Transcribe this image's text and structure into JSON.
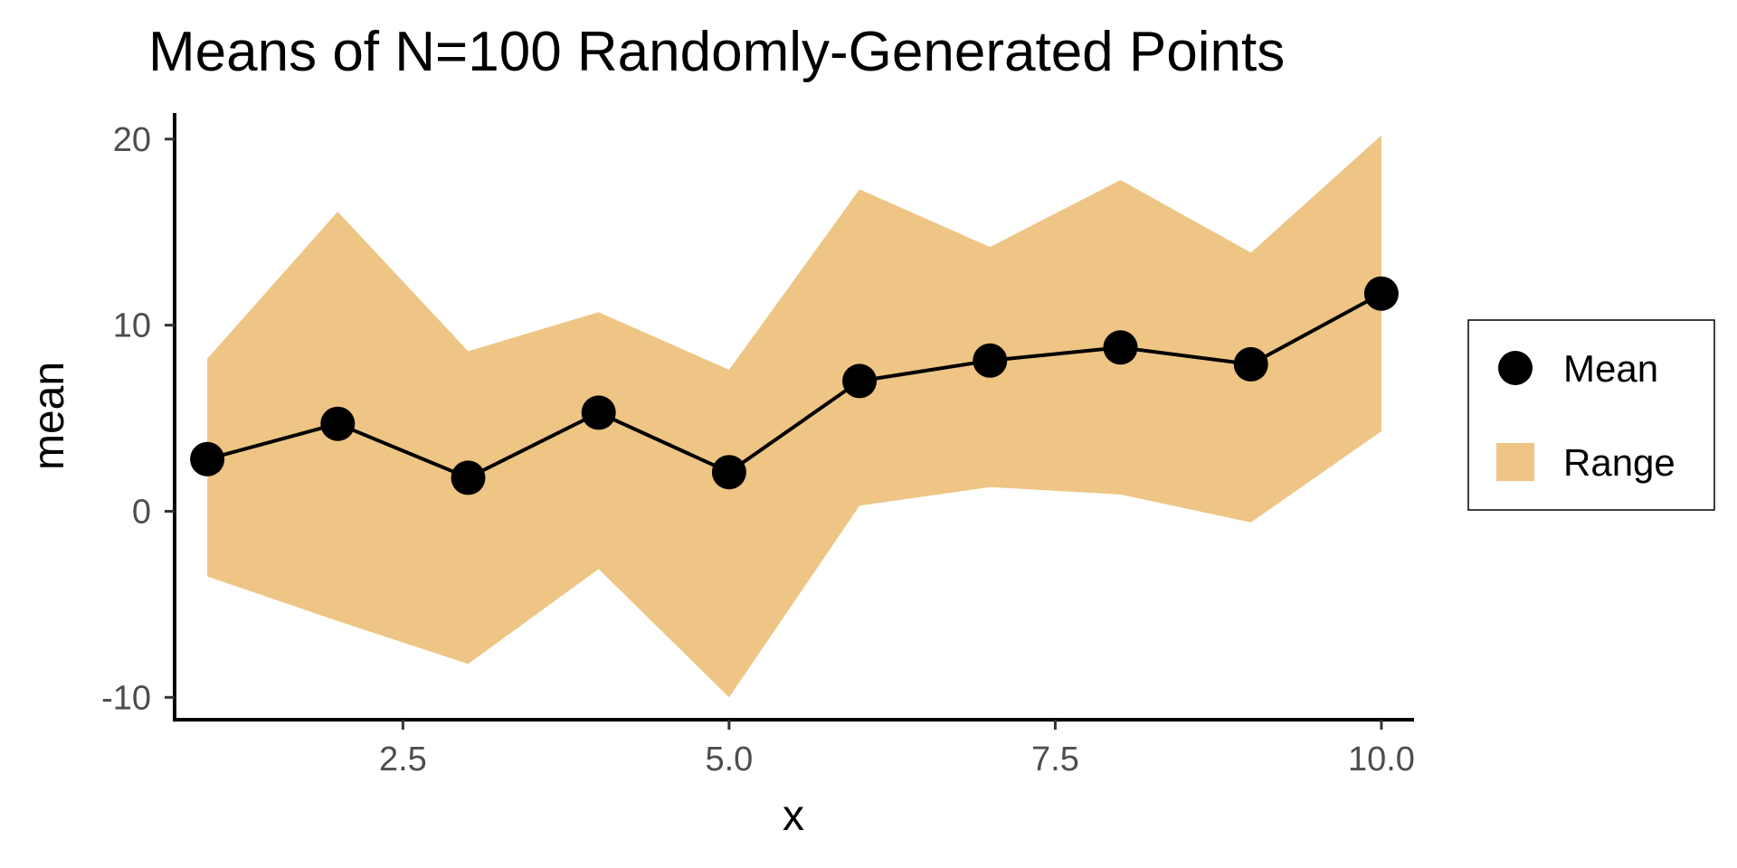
{
  "chart_data": {
    "type": "line",
    "title": "Means of N=100 Randomly-Generated Points",
    "xlabel": "x",
    "ylabel": "mean",
    "xlim": [
      0.75,
      10.25
    ],
    "ylim": [
      -11.2,
      21.4
    ],
    "x_ticks": [
      2.5,
      5.0,
      7.5,
      10.0
    ],
    "x_tick_labels": [
      "2.5",
      "5.0",
      "7.5",
      "10.0"
    ],
    "y_ticks": [
      -10,
      0,
      10,
      20
    ],
    "y_tick_labels": [
      "-10",
      "0",
      "10",
      "20"
    ],
    "grid": false,
    "legend_position": "right",
    "x": [
      1,
      2,
      3,
      4,
      5,
      6,
      7,
      8,
      9,
      10
    ],
    "series": [
      {
        "name": "Mean",
        "kind": "line+points",
        "color": "#000000",
        "values": [
          2.8,
          4.7,
          1.8,
          5.3,
          2.1,
          7.0,
          8.1,
          8.8,
          7.9,
          11.7
        ]
      },
      {
        "name": "Range",
        "kind": "ribbon",
        "color": "#EEC584",
        "lower": [
          -3.5,
          -5.9,
          -8.2,
          -3.1,
          -10.0,
          0.3,
          1.3,
          0.9,
          -0.6,
          4.3
        ],
        "upper": [
          8.2,
          16.1,
          8.6,
          10.7,
          7.6,
          17.3,
          14.2,
          17.8,
          13.9,
          20.2
        ]
      }
    ]
  }
}
